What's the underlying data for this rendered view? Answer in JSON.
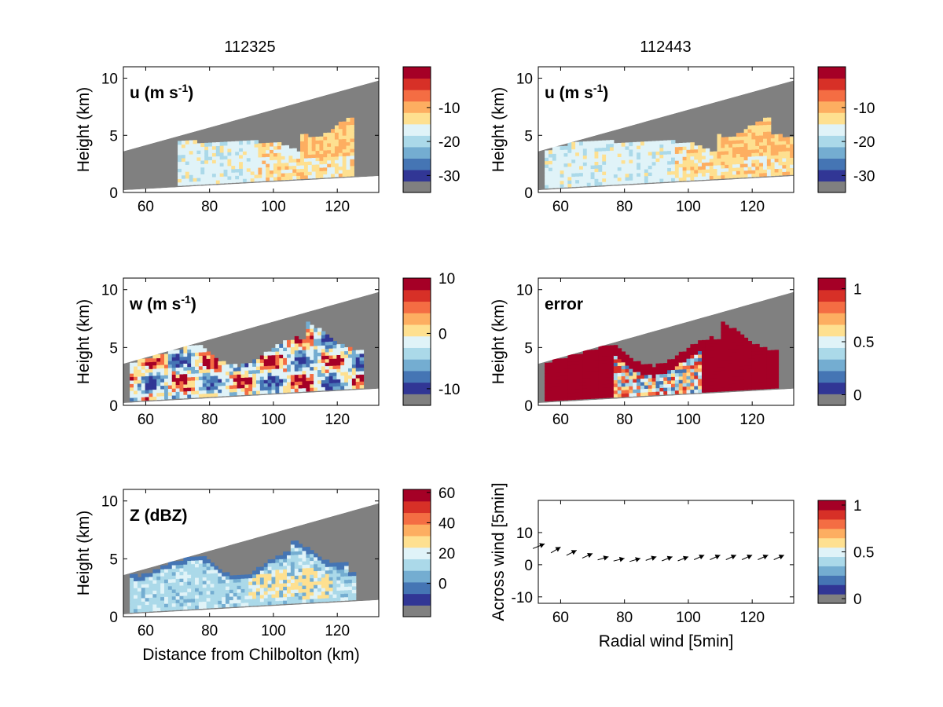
{
  "figure": {
    "column_titles": [
      "112325",
      "112443"
    ]
  },
  "colors": {
    "palette": [
      "#808080",
      "#313695",
      "#4575b4",
      "#74add1",
      "#abd9e9",
      "#e0f3f8",
      "#fee090",
      "#fdae61",
      "#f46d43",
      "#d73027",
      "#a50026"
    ],
    "missing": "#808080"
  },
  "chart_data": [
    {
      "type": "heatmap",
      "panel_label": "u (m s-1)",
      "ylabel": "Height (km)",
      "xlabel": "",
      "xlim": [
        53,
        133
      ],
      "ylim": [
        0,
        11
      ],
      "xticks": [
        60,
        80,
        100,
        120
      ],
      "yticks": [
        0,
        5,
        10
      ],
      "colorbar": {
        "range": [
          -35,
          2
        ],
        "ticks": [
          -10,
          -20,
          -30
        ]
      },
      "field": "u wind, mostly -20 to -10 m/s, weaker toward 110-125 km",
      "echo_extent_km": [
        70,
        125
      ]
    },
    {
      "type": "heatmap",
      "panel_label": "u (m s-1)",
      "ylabel": "Height (km)",
      "xlabel": "",
      "xlim": [
        53,
        133
      ],
      "ylim": [
        0,
        11
      ],
      "xticks": [
        60,
        80,
        100,
        120
      ],
      "yticks": [
        0,
        5,
        10
      ],
      "colorbar": {
        "range": [
          -35,
          2
        ],
        "ticks": [
          -10,
          -20,
          -30
        ]
      },
      "field": "u wind, mostly -20 to -10 m/s",
      "echo_extent_km": [
        55,
        133
      ]
    },
    {
      "type": "heatmap",
      "panel_label": "w (m s-1)",
      "ylabel": "Height (km)",
      "xlabel": "",
      "xlim": [
        53,
        133
      ],
      "ylim": [
        0,
        11
      ],
      "xticks": [
        60,
        80,
        100,
        120
      ],
      "yticks": [
        0,
        5,
        10
      ],
      "colorbar": {
        "range": [
          -13,
          10
        ],
        "ticks": [
          10,
          0,
          -10
        ]
      },
      "field": "vertical wind, mixed updrafts and downdrafts",
      "echo_extent_km": [
        55,
        128
      ]
    },
    {
      "type": "heatmap",
      "panel_label": "error",
      "ylabel": "Height (km)",
      "xlabel": "",
      "xlim": [
        53,
        133
      ],
      "ylim": [
        0,
        11
      ],
      "xticks": [
        60,
        80,
        100,
        120
      ],
      "yticks": [
        0,
        5,
        10
      ],
      "colorbar": {
        "range": [
          -0.1,
          1.1
        ],
        "ticks": [
          1,
          0.5,
          0
        ]
      },
      "field": "retrieval error, high (>1) at cloud edges, low in core",
      "echo_extent_km": [
        55,
        128
      ]
    },
    {
      "type": "heatmap",
      "panel_label": "Z (dBZ)",
      "ylabel": "Height (km)",
      "xlabel": "Distance from Chilbolton (km)",
      "xlim": [
        53,
        133
      ],
      "ylim": [
        0,
        11
      ],
      "xticks": [
        60,
        80,
        100,
        120
      ],
      "yticks": [
        0,
        5,
        10
      ],
      "colorbar": {
        "range": [
          -22,
          62
        ],
        "ticks": [
          60,
          40,
          20,
          0
        ]
      },
      "field": "reflectivity, mostly 0-25 dBZ, cores near 30 dBZ",
      "echo_extent_km": [
        55,
        125
      ]
    },
    {
      "type": "vector",
      "xlabel": "Radial wind [5min]",
      "ylabel": "Across wind [5min]",
      "xlim": [
        53,
        133
      ],
      "ylim": [
        -12,
        20
      ],
      "xticks": [
        60,
        80,
        100,
        120
      ],
      "yticks": [
        -10,
        0,
        10
      ],
      "colorbar": {
        "range": [
          -0.05,
          1.05
        ],
        "ticks": [
          1,
          0.5,
          0
        ]
      },
      "arrows": [
        {
          "x": 55,
          "y": 6.5,
          "u": 1,
          "v": 0.4
        },
        {
          "x": 60,
          "y": 5.5,
          "u": 1,
          "v": 0.6
        },
        {
          "x": 65,
          "y": 4.5,
          "u": 1,
          "v": 0.5
        },
        {
          "x": 70,
          "y": 3.5,
          "u": 1,
          "v": 0.45
        },
        {
          "x": 75,
          "y": 2.5,
          "u": 1,
          "v": 0.3
        },
        {
          "x": 80,
          "y": 2,
          "u": 1,
          "v": 0.25
        },
        {
          "x": 85,
          "y": 2,
          "u": 1,
          "v": 0.3
        },
        {
          "x": 90,
          "y": 2.5,
          "u": 1,
          "v": 0.35
        },
        {
          "x": 95,
          "y": 2.5,
          "u": 1,
          "v": 0.4
        },
        {
          "x": 100,
          "y": 2.5,
          "u": 1,
          "v": 0.4
        },
        {
          "x": 105,
          "y": 3,
          "u": 1,
          "v": 0.45
        },
        {
          "x": 110,
          "y": 3,
          "u": 1,
          "v": 0.45
        },
        {
          "x": 115,
          "y": 3,
          "u": 1,
          "v": 0.45
        },
        {
          "x": 120,
          "y": 3,
          "u": 1,
          "v": 0.45
        },
        {
          "x": 125,
          "y": 3,
          "u": 1,
          "v": 0.45
        },
        {
          "x": 130,
          "y": 3,
          "u": 1,
          "v": 0.45
        }
      ]
    }
  ]
}
